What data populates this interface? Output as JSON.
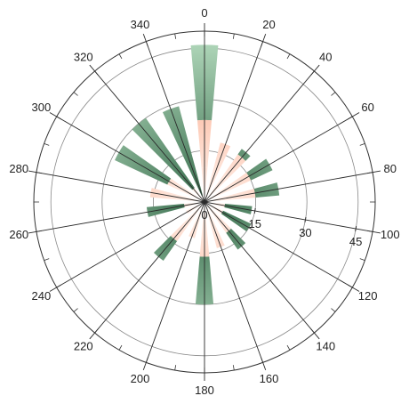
{
  "chart_data": {
    "type": "polar-stacked-bar",
    "title": "",
    "angle_ticks": [
      "0",
      "20",
      "40",
      "60",
      "80",
      "100",
      "120",
      "140",
      "160",
      "180",
      "200",
      "220",
      "240",
      "260",
      "280",
      "300",
      "320",
      "340"
    ],
    "radial_ticks": [
      "0",
      "15",
      "30",
      "45"
    ],
    "rlim": [
      0,
      50
    ],
    "direction": "clockwise",
    "zero_at": "top",
    "categories": [
      "0",
      "20",
      "40",
      "60",
      "80",
      "100",
      "120",
      "140",
      "160",
      "180",
      "200",
      "220",
      "240",
      "260",
      "280",
      "300",
      "320",
      "340"
    ],
    "series": [
      {
        "values": [
          10,
          9,
          5,
          4,
          2,
          1,
          2,
          3,
          5,
          8,
          6,
          2,
          1,
          0,
          0,
          0,
          0,
          0
        ]
      },
      {
        "values": [
          24,
          18,
          17,
          15,
          15,
          6,
          6,
          11,
          14,
          16,
          11,
          14,
          6,
          6,
          16,
          12,
          5,
          2
        ]
      },
      {
        "values": [
          46,
          0,
          19,
          22,
          22,
          14,
          15,
          17,
          0,
          30,
          0,
          21,
          0,
          17,
          0,
          29,
          30,
          29
        ]
      }
    ],
    "colors": {
      "light_series": [
        "#fff6f0",
        "#fb9a78"
      ],
      "dark_series": [
        "#b7ddc0",
        "#356a4a"
      ],
      "stroke": "#2a2a2a"
    },
    "grid": true
  }
}
